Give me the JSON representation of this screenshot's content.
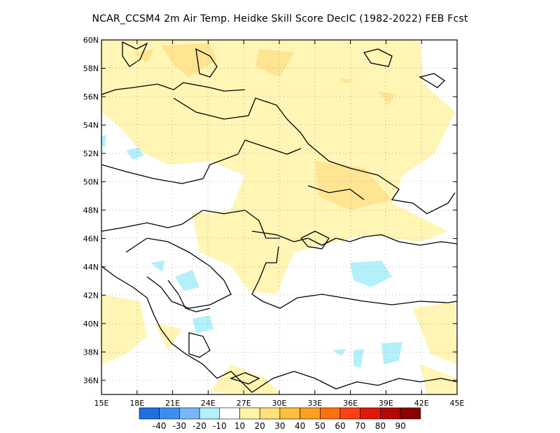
{
  "title": "NCAR_CCSM4  2m Air Temp. Heidke Skill Score DecIC (1982-2022) FEB Fcst",
  "axes": {
    "lon_labels": [
      "15E",
      "18E",
      "21E",
      "24E",
      "27E",
      "30E",
      "33E",
      "36E",
      "39E",
      "42E",
      "45E"
    ],
    "lat_labels": [
      "60N",
      "58N",
      "56N",
      "54N",
      "52N",
      "50N",
      "48N",
      "46N",
      "44N",
      "42N",
      "40N",
      "38N",
      "36N"
    ],
    "lon_range": [
      15,
      45
    ],
    "lat_range": [
      35,
      60
    ]
  },
  "colorbar": {
    "labels": [
      "-40",
      "-30",
      "-20",
      "-10",
      "10",
      "20",
      "30",
      "40",
      "50",
      "60",
      "70",
      "80",
      "90"
    ],
    "colors": [
      "#1e6fe6",
      "#3c8ef0",
      "#78b6f8",
      "#b4f0fa",
      "#ffffff",
      "#fff5a8",
      "#ffe07a",
      "#ffc040",
      "#ff9f20",
      "#ff7010",
      "#ff4010",
      "#e01808",
      "#b40808",
      "#8c0000"
    ]
  }
}
